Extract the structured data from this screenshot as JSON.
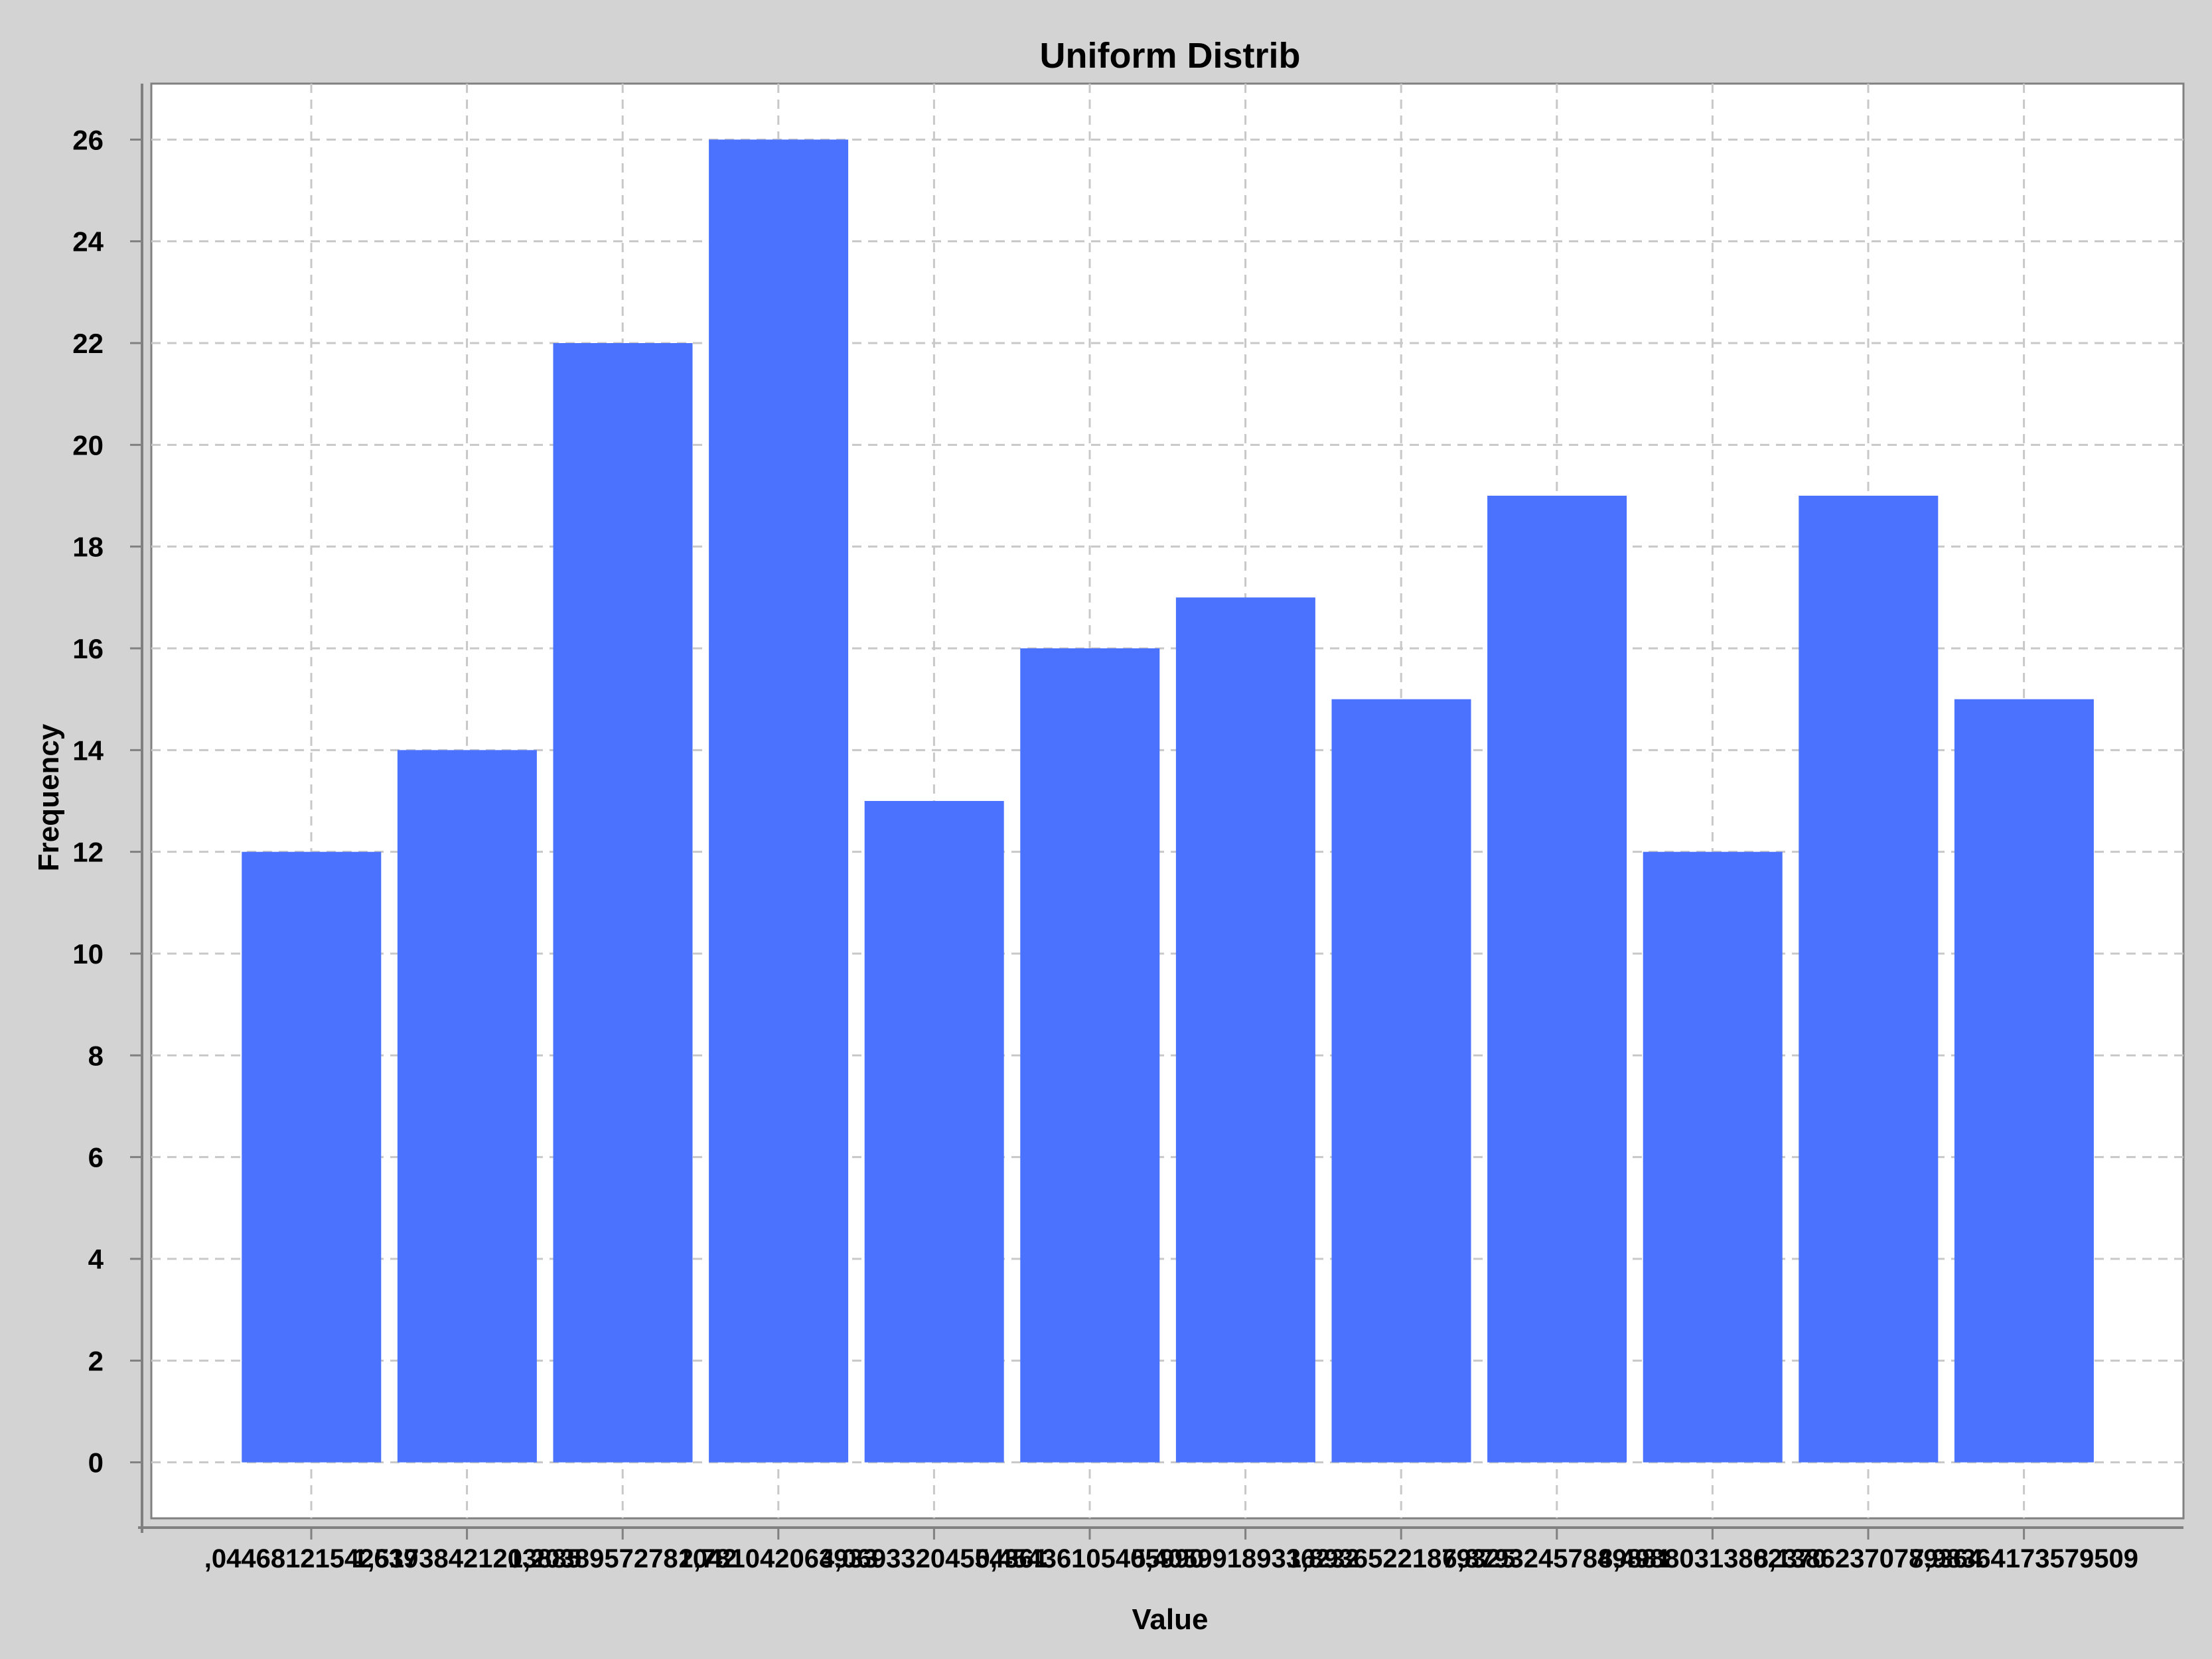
{
  "chart_data": {
    "type": "bar",
    "title": "Uniform Distrib",
    "xlabel": "Value",
    "ylabel": "Frequency",
    "ylim": [
      -1.1,
      27.1
    ],
    "y_ticks": [
      0,
      2,
      4,
      6,
      8,
      10,
      12,
      14,
      16,
      18,
      20,
      22,
      24,
      26
    ],
    "categories": [
      ",04468121542639",
      "1,51738421203885",
      "1,20389572781042",
      "2,781042063933",
      "4,06933204554361",
      "0,45436105405990",
      "5,40599189336232",
      "1,89365221879325",
      "6,87932457849881",
      "8,49880313862370",
      "8,13862370789364",
      "7,98364173579509"
    ],
    "values": [
      12,
      14,
      22,
      26,
      13,
      16,
      17,
      15,
      19,
      12,
      19,
      15
    ],
    "grid": true,
    "legend": "none",
    "colors": {
      "bar": "#4a72ff",
      "page_background": "#d3d3d3",
      "plot_background": "#ffffff",
      "grid": "#c8c8c8",
      "axis": "#808080"
    }
  }
}
